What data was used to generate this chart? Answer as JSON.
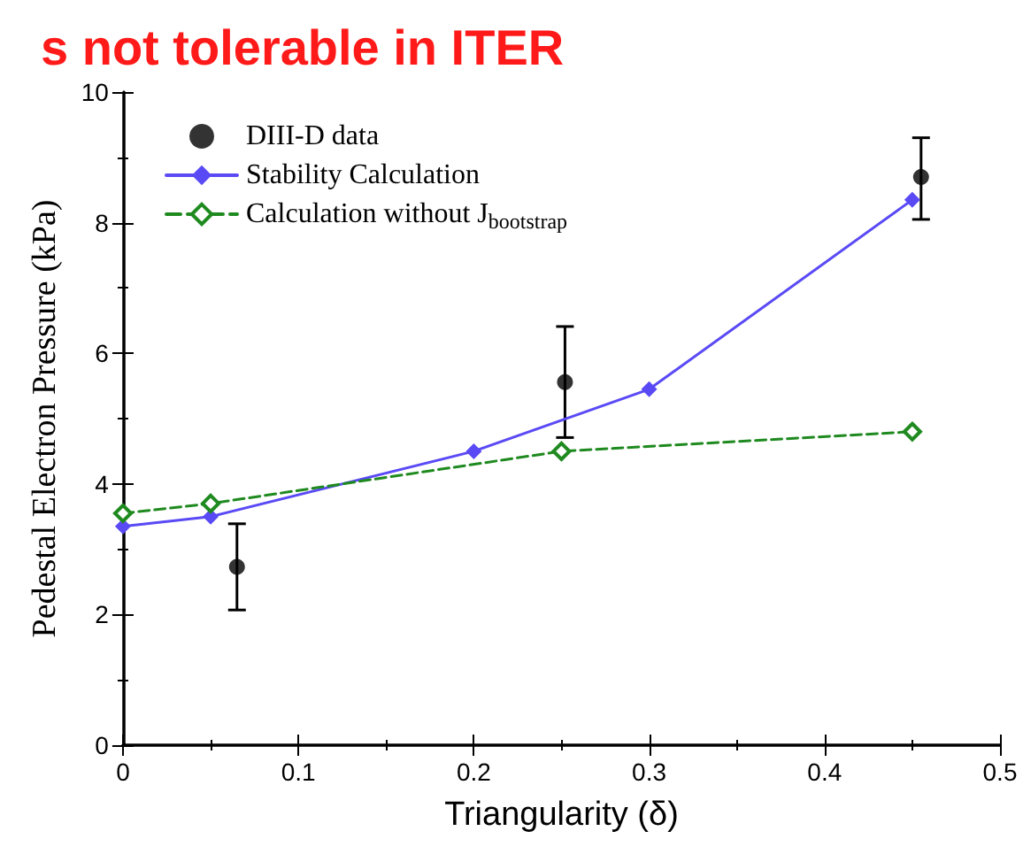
{
  "chart_data": {
    "type": "line",
    "title": "s not tolerable in ITER",
    "xlabel": "Triangularity (δ)",
    "ylabel": "Pedestal Electron Pressure (kPa)",
    "xlim": [
      0,
      0.5
    ],
    "xticks": [
      0,
      0.1,
      0.2,
      0.3,
      0.4,
      0.5
    ],
    "ylim": [
      0,
      10
    ],
    "yticks": [
      0,
      2,
      4,
      6,
      8,
      10
    ],
    "grid": false,
    "legend": "top left",
    "series": [
      {
        "name": "DIII-D data",
        "type": "scatter",
        "color": "#000000",
        "marker": "circle",
        "x": [
          0.065,
          0.252,
          0.455
        ],
        "values": [
          2.73,
          5.56,
          8.7
        ],
        "errors": [
          [
            2.07,
            3.39
          ],
          [
            4.71,
            6.41
          ],
          [
            8.05,
            9.3
          ]
        ]
      },
      {
        "name": "Stability Calculation",
        "color": "#5a4af5",
        "marker": "diamond",
        "line_style": "solid",
        "x": [
          0,
          0.05,
          0.2,
          0.3,
          0.45
        ],
        "values": [
          3.35,
          3.5,
          4.5,
          5.45,
          8.35
        ]
      },
      {
        "name": "Calculation without J$_{bootstrap}$",
        "color": "#1f8a1f",
        "marker": "diamond",
        "line_style": "dashed",
        "x": [
          0,
          0.05,
          0.25,
          0.45
        ],
        "values": [
          3.55,
          3.7,
          4.5,
          4.8
        ]
      }
    ]
  }
}
